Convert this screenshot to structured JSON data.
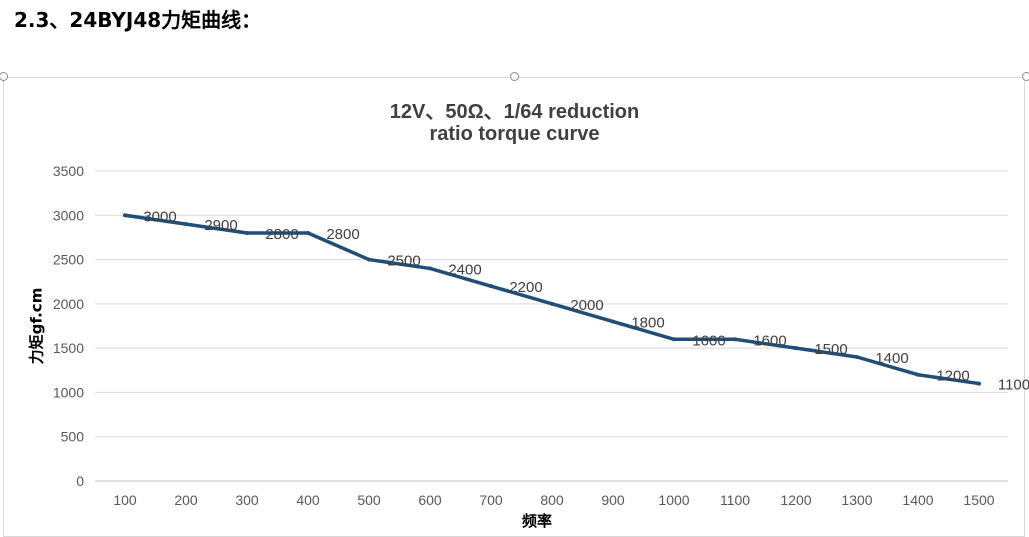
{
  "page": {
    "heading": "2.3、24BYJ48力矩曲线："
  },
  "chart_data": {
    "type": "line",
    "title": "12V、50Ω、1/64 reduction ratio torque curve",
    "title_lines": [
      "12V、50Ω、1/64 reduction",
      "ratio torque curve"
    ],
    "ylabel": "力矩gf.cm",
    "xlabel": "频率",
    "categories": [
      "100",
      "200",
      "300",
      "400",
      "500",
      "600",
      "700",
      "800",
      "900",
      "1000",
      "1100",
      "1200",
      "1300",
      "1400",
      "1500"
    ],
    "series": [
      {
        "values": [
          3000,
          2900,
          2800,
          2800,
          2500,
          2400,
          2200,
          2000,
          1800,
          1600,
          1600,
          1500,
          1400,
          1200,
          1100
        ]
      }
    ],
    "ylim": [
      0,
      3500
    ],
    "yticks": [
      0,
      500,
      1000,
      1500,
      2000,
      2500,
      3000,
      3500
    ],
    "grid": true,
    "data_labels": true,
    "line_color": "#1f4e79"
  }
}
